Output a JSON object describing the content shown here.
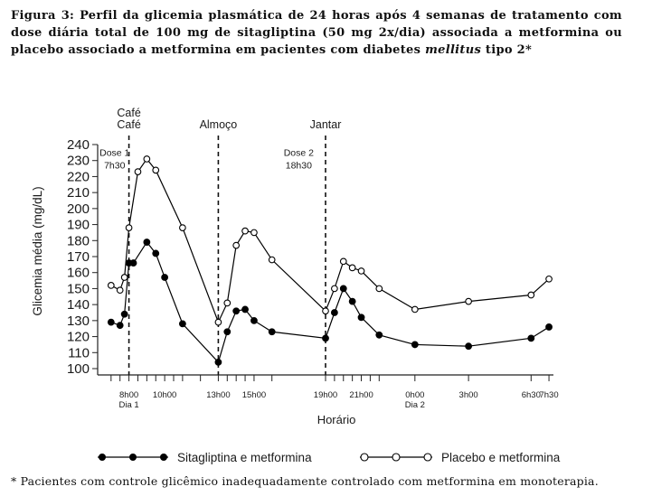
{
  "caption": {
    "prefix": "Figura 3: Perfil da glicemia plasmática de 24 horas após 4 semanas de tratamento com dose diária total de 100 mg de sitagliptina (50 mg 2x/dia) associada a metformina ou placebo associado a metformina em pacientes com diabetes ",
    "italic": "mellitus",
    "suffix": " tipo 2*"
  },
  "footnote": "* Pacientes com controle glicêmico inadequadamente controlado com metformina em monoterapia.",
  "chart_data": {
    "type": "line",
    "ylabel": "Glicemia média (mg/dL)",
    "xlabel": "Horário",
    "ylim": [
      100,
      240
    ],
    "yticks": [
      100,
      110,
      120,
      130,
      140,
      150,
      160,
      170,
      180,
      190,
      200,
      210,
      220,
      230,
      240
    ],
    "xlim_hours": [
      6.25,
      31.75
    ],
    "x_tick_hours": [
      7,
      7.5,
      8,
      8.5,
      9,
      9.5,
      10,
      10.5,
      11,
      12,
      13,
      13.5,
      14,
      14.5,
      15,
      16,
      19,
      19.5,
      20,
      20.5,
      21,
      21.5,
      22,
      24,
      27,
      30.5,
      31.5
    ],
    "x_tick_labels": [
      {
        "hour": 8,
        "text": "8h00",
        "sub": "Dia 1"
      },
      {
        "hour": 10,
        "text": "10h00"
      },
      {
        "hour": 13,
        "text": "13h00"
      },
      {
        "hour": 15,
        "text": "15h00"
      },
      {
        "hour": 19,
        "text": "19h00"
      },
      {
        "hour": 21,
        "text": "21h00"
      },
      {
        "hour": 24,
        "text": "0h00",
        "sub": "Dia 2"
      },
      {
        "hour": 27,
        "text": "3h00"
      },
      {
        "hour": 30.5,
        "text": "6h30"
      },
      {
        "hour": 31.5,
        "text": "7h30"
      }
    ],
    "events": [
      {
        "hour": 8,
        "labels": [
          "Café",
          "Café"
        ]
      },
      {
        "hour": 13,
        "labels": [
          "Almoço"
        ]
      },
      {
        "hour": 19,
        "labels": [
          "Jantar"
        ]
      }
    ],
    "annotations": [
      {
        "hour": 7.2,
        "y": 233,
        "lines": [
          "Dose 1",
          "7h30"
        ]
      },
      {
        "hour": 17.5,
        "y": 233,
        "lines": [
          "Dose 2",
          "18h30"
        ]
      }
    ],
    "series": [
      {
        "name": "Sitagliptina e metformina",
        "marker": "filled",
        "color": "#000000",
        "x": [
          7.0,
          7.5,
          7.75,
          8.0,
          8.25,
          9.0,
          9.5,
          10.0,
          11.0,
          13.0,
          13.5,
          14.0,
          14.5,
          15.0,
          16.0,
          19.0,
          19.5,
          20.0,
          20.5,
          21.0,
          22.0,
          24.0,
          27.0,
          30.5,
          31.5
        ],
        "y": [
          129,
          127,
          134,
          166,
          166,
          179,
          172,
          157,
          128,
          104,
          123,
          136,
          137,
          130,
          123,
          119,
          135,
          150,
          142,
          132,
          121,
          115,
          114,
          119,
          126
        ]
      },
      {
        "name": "Placebo e metformina",
        "marker": "open",
        "color": "#000000",
        "x": [
          7.0,
          7.5,
          7.75,
          8.0,
          8.5,
          9.0,
          9.5,
          11.0,
          13.0,
          13.5,
          14.0,
          14.5,
          15.0,
          16.0,
          19.0,
          19.5,
          20.0,
          20.5,
          21.0,
          22.0,
          24.0,
          27.0,
          30.5,
          31.5
        ],
        "y": [
          152,
          149,
          157,
          188,
          223,
          231,
          224,
          188,
          129,
          141,
          177,
          186,
          185,
          168,
          136,
          150,
          167,
          163,
          161,
          150,
          137,
          142,
          146,
          156
        ]
      }
    ]
  }
}
